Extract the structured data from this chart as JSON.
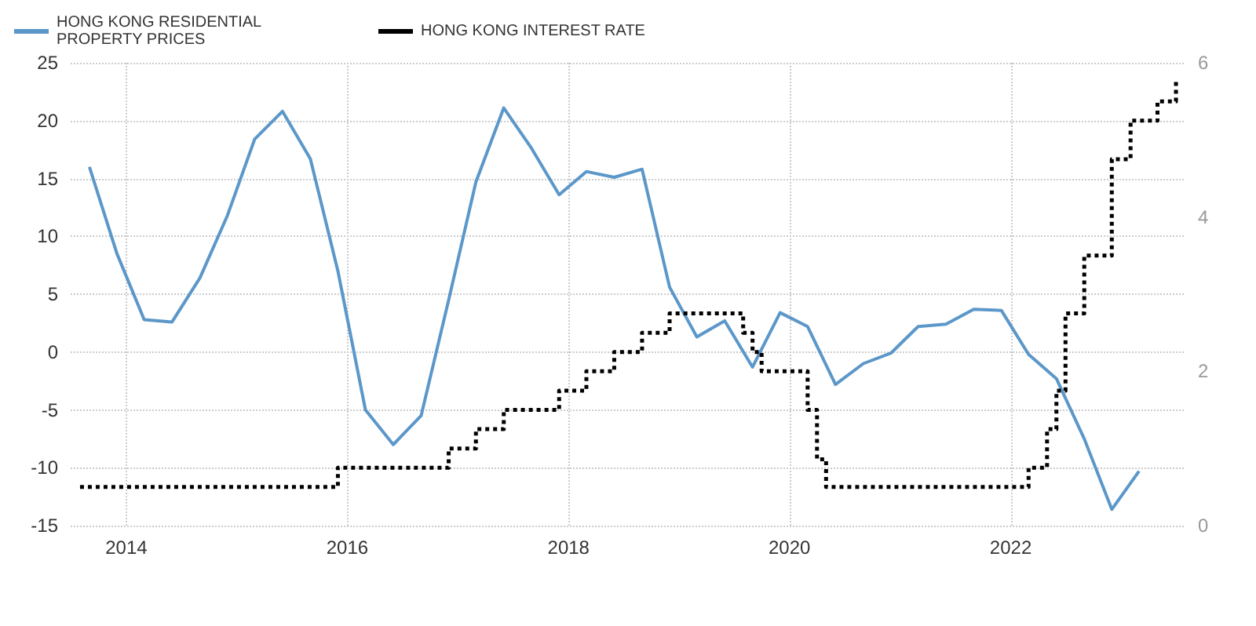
{
  "chart_data": {
    "type": "line",
    "grid": true,
    "legend": "top left",
    "xlim": [
      "2013-07",
      "2023-08"
    ],
    "xticks": [
      "2014",
      "2016",
      "2018",
      "2020",
      "2022"
    ],
    "ylim": [
      -15,
      25
    ],
    "yticks": [
      -15,
      -10,
      -5,
      0,
      5,
      10,
      15,
      20,
      25
    ],
    "y2lim": [
      0,
      6
    ],
    "y2ticks": [
      0,
      2,
      4,
      6
    ],
    "series": [
      {
        "name": "HONG KONG RESIDENTIAL PROPERTY PRICES",
        "color": "#5b97c9",
        "line_style": "solid",
        "x": [
          "2013-09",
          "2013-12",
          "2014-03",
          "2014-06",
          "2014-09",
          "2014-12",
          "2015-03",
          "2015-06",
          "2015-09",
          "2015-12",
          "2016-03",
          "2016-06",
          "2016-09",
          "2016-12",
          "2017-03",
          "2017-06",
          "2017-09",
          "2017-12",
          "2018-03",
          "2018-06",
          "2018-09",
          "2018-12",
          "2019-03",
          "2019-06",
          "2019-09",
          "2019-12",
          "2020-03",
          "2020-06",
          "2020-09",
          "2020-12",
          "2021-03",
          "2021-06",
          "2021-09",
          "2021-12",
          "2022-03",
          "2022-06",
          "2022-09",
          "2022-12",
          "2023-03"
        ],
        "values": [
          16,
          8.5,
          2.8,
          2.6,
          6.4,
          11.8,
          18.4,
          20.8,
          16.7,
          7,
          -5,
          -8,
          -5.5,
          4.5,
          14.7,
          21.1,
          17.6,
          13.6,
          15.6,
          15.1,
          15.8,
          5.6,
          1.3,
          2.7,
          -1.3,
          3.4,
          2.2,
          -2.8,
          -1,
          -0.1,
          2.2,
          2.4,
          3.7,
          3.6,
          -0.2,
          -2.3,
          -7.5,
          -13.6,
          -10.3
        ]
      },
      {
        "name": "HONG KONG INTEREST RATE",
        "type": "step",
        "axis": "y2",
        "color": "#000000",
        "line_style": "dotted",
        "x": [
          "2013-08",
          "2015-12",
          "2016-12",
          "2017-03",
          "2017-06",
          "2017-12",
          "2018-03",
          "2018-06",
          "2018-09",
          "2018-12",
          "2019-08",
          "2019-09",
          "2019-10",
          "2020-03",
          "2020-04",
          "2020-05",
          "2022-03",
          "2022-05",
          "2022-06",
          "2022-07",
          "2022-09",
          "2022-12",
          "2023-02",
          "2023-05",
          "2023-07"
        ],
        "values": [
          0.5,
          0.75,
          1,
          1.25,
          1.5,
          1.75,
          2,
          2.25,
          2.5,
          2.75,
          2.5,
          2.25,
          2,
          1.5,
          0.86,
          0.5,
          0.75,
          1.25,
          1.75,
          2.75,
          3.5,
          4.75,
          5.25,
          5.5,
          5.75
        ]
      }
    ]
  }
}
